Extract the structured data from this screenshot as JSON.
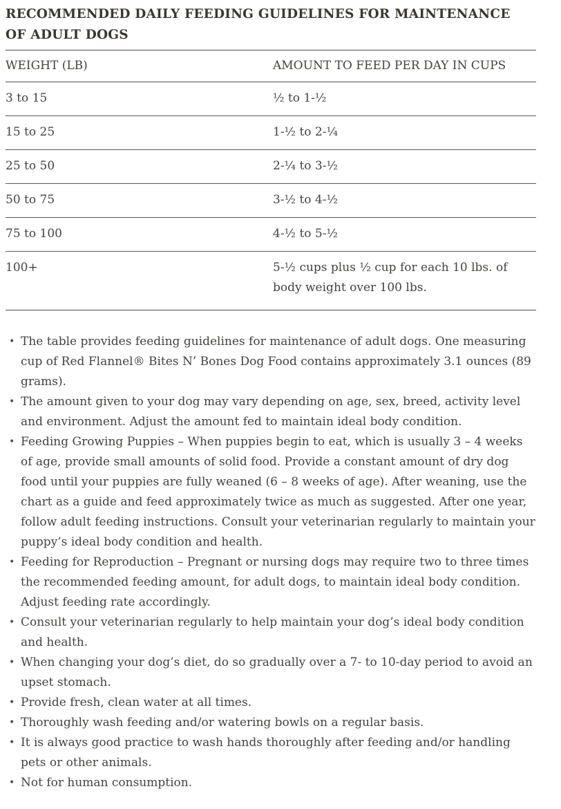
{
  "colors": {
    "text": "#424240",
    "title": "#3a3834",
    "rule": "#4d4d4d",
    "background": "#ffffff"
  },
  "title": "RECOMMENDED DAILY FEEDING GUIDELINES FOR MAINTENANCE OF ADULT DOGS",
  "table": {
    "columns": [
      "WEIGHT (LB)",
      "AMOUNT TO FEED PER DAY IN CUPS"
    ],
    "rows": [
      [
        "3 to 15",
        "½ to 1-½"
      ],
      [
        "15 to 25",
        "1-½ to 2-¼"
      ],
      [
        "25 to 50",
        "2-¼ to 3-½"
      ],
      [
        "50 to 75",
        "3-½ to 4-½"
      ],
      [
        "75 to 100",
        "4-½ to 5-½"
      ],
      [
        "100+",
        "5-½ cups plus ½ cup for each 10 lbs. of body weight over 100 lbs."
      ]
    ]
  },
  "notes": {
    "items": [
      "The table provides feeding guidelines for maintenance of adult dogs. One measuring cup of Red Flannel® Bites N’ Bones Dog Food contains approximately 3.1 ounces (89 grams).",
      "The amount given to your dog may vary depending on age, sex, breed, activity level and environment. Adjust the amount fed to maintain ideal body condition.",
      "Feeding Growing Puppies – When puppies begin to eat, which is usually 3 – 4 weeks of age, provide small amounts of solid food. Provide a constant amount of dry dog food until your puppies are fully weaned (6 – 8 weeks of age). After weaning, use the chart as a guide and feed approximately twice as much as suggested. After one year, follow adult feeding instructions. Consult your veterinarian regularly to maintain your puppy’s ideal body condition and health.",
      "Feeding for Reproduction – Pregnant or nursing dogs may require two to three times the recommended feeding amount, for adult dogs, to maintain ideal body condition. Adjust feeding rate accordingly.",
      "Consult your veterinarian regularly to help maintain your dog’s ideal body condition and health.",
      "When changing your dog’s diet, do so gradually over a 7- to 10-day period to avoid an upset stomach.",
      "Provide fresh, clean water at all times.",
      "Thoroughly wash feeding and/or watering bowls on a regular basis.",
      "It is always good practice to wash hands thoroughly after feeding and/or handling pets or other animals.",
      "Not for human consumption."
    ]
  }
}
